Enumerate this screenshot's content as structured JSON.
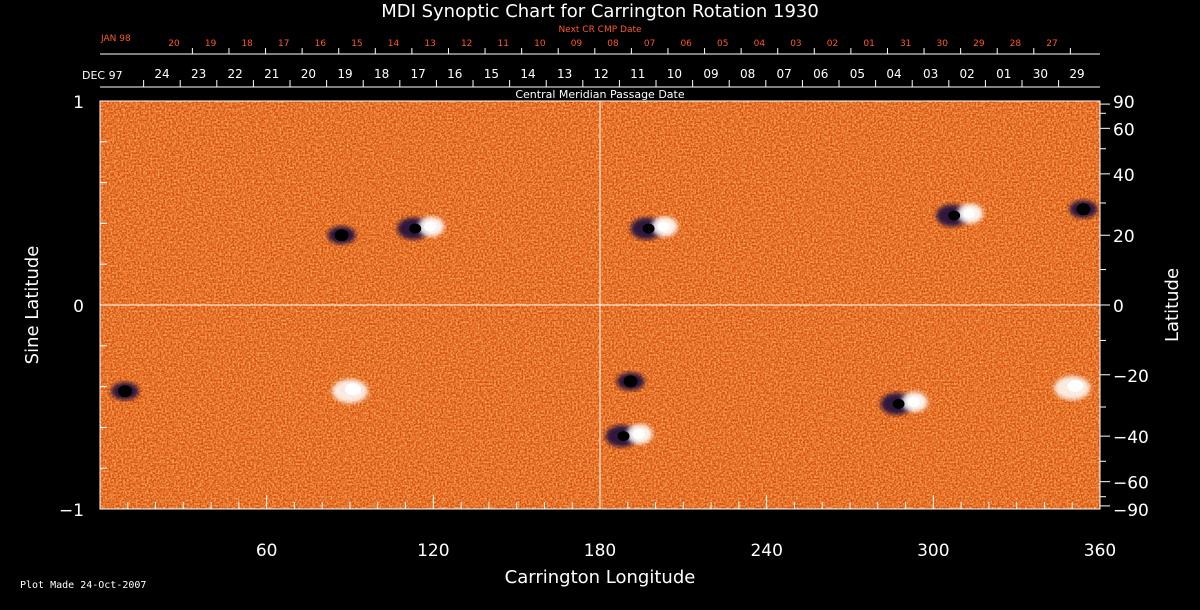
{
  "chart_data": {
    "type": "heatmap",
    "title": "MDI Synoptic Chart for Carrington Rotation 1930",
    "xlabel": "Carrington Longitude",
    "ylabel_left": "Sine Latitude",
    "ylabel_right": "Latitude",
    "xlim": [
      0,
      360
    ],
    "ylim": [
      -1,
      1
    ],
    "x_ticks": [
      "60",
      "120",
      "180",
      "240",
      "300",
      "360"
    ],
    "y_ticks_left": [
      "1",
      "0",
      "−1"
    ],
    "y_ticks_right": [
      "90",
      "60",
      "40",
      "20",
      "0",
      "−20",
      "−40",
      "−60",
      "−90"
    ],
    "cmp_label": "Central Meridian Passage Date",
    "cmp_month": "DEC 97",
    "cmp_dates": [
      "24",
      "23",
      "22",
      "21",
      "20",
      "19",
      "18",
      "17",
      "16",
      "15",
      "14",
      "13",
      "12",
      "11",
      "10",
      "09",
      "08",
      "07",
      "06",
      "05",
      "04",
      "03",
      "02",
      "01",
      "30",
      "29"
    ],
    "next_label": "Next CR CMP Date",
    "next_month": "JAN 98",
    "next_dates": [
      "20",
      "19",
      "18",
      "17",
      "16",
      "15",
      "14",
      "13",
      "12",
      "11",
      "10",
      "09",
      "08",
      "07",
      "06",
      "05",
      "04",
      "03",
      "02",
      "01",
      "31",
      "30",
      "29",
      "28",
      "27"
    ],
    "colormap": {
      "background": "#e85a10",
      "positive": "#ffffff",
      "negative": "#1a1040",
      "axis": "#ffffff",
      "next_dates": "#ff5a20"
    },
    "active_regions": [
      {
        "lon": 87,
        "lat": 20,
        "polarity": "negative"
      },
      {
        "lon": 116,
        "lat": 22,
        "polarity": "bipolar"
      },
      {
        "lon": 200,
        "lat": 22,
        "polarity": "bipolar"
      },
      {
        "lon": 310,
        "lat": 26,
        "polarity": "bipolar"
      },
      {
        "lon": 354,
        "lat": 28,
        "polarity": "negative"
      },
      {
        "lon": 9,
        "lat": -25,
        "polarity": "negative"
      },
      {
        "lon": 90,
        "lat": -25,
        "polarity": "positive"
      },
      {
        "lon": 191,
        "lat": -22,
        "polarity": "negative"
      },
      {
        "lon": 191,
        "lat": -40,
        "polarity": "bipolar"
      },
      {
        "lon": 290,
        "lat": -29,
        "polarity": "bipolar"
      },
      {
        "lon": 350,
        "lat": -24,
        "polarity": "positive"
      }
    ]
  },
  "footer": "Plot Made 24-Oct-2007"
}
